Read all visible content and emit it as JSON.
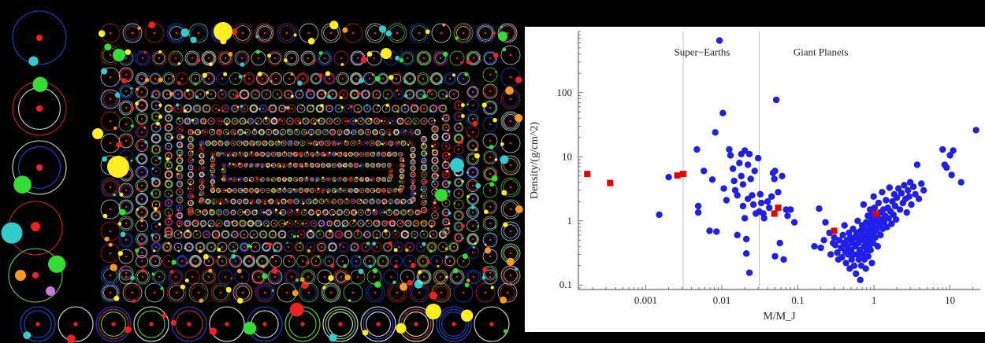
{
  "orbit_panel": {
    "description_colors": {
      "background": "#000000",
      "orbit_white": "#d9d9d9",
      "orbit_green": "#66cc44",
      "orbit_red": "#cc2222",
      "orbit_blue": "#2244cc",
      "planet_yellow": "#ffee22",
      "planet_green": "#33dd33",
      "planet_red": "#ee2222",
      "planet_cyan": "#33cccc",
      "planet_orange": "#ff9922",
      "planet_violet": "#cc77dd"
    }
  },
  "chart_data": {
    "type": "scatter",
    "title": "",
    "xlabel": "M/M_J",
    "ylabel": "Density/(g/cm^2)",
    "xscale": "log",
    "yscale": "log",
    "xlim": [
      0.00013,
      25
    ],
    "ylim": [
      0.085,
      900
    ],
    "x_ticks": [
      {
        "value": 0.001,
        "label": "0.001"
      },
      {
        "value": 0.01,
        "label": "0.01"
      },
      {
        "value": 0.1,
        "label": "0.1"
      },
      {
        "value": 1,
        "label": "1"
      },
      {
        "value": 10,
        "label": "10"
      }
    ],
    "y_ticks": [
      {
        "value": 0.1,
        "label": "0.1"
      },
      {
        "value": 1,
        "label": "1"
      },
      {
        "value": 10,
        "label": "10"
      },
      {
        "value": 100,
        "label": "100"
      }
    ],
    "vertical_lines": [
      0.0031,
      0.031
    ],
    "region_labels": [
      {
        "text": "Super−Earths",
        "x": 0.0055,
        "y": 380
      },
      {
        "text": "Giant Planets",
        "x": 0.2,
        "y": 380
      }
    ],
    "grid": false,
    "legend": "none",
    "series": [
      {
        "color": "#1f1fe6",
        "marker": "circle",
        "points": [
          [
            0.0015,
            1.25
          ],
          [
            0.002,
            4.8
          ],
          [
            0.0047,
            13
          ],
          [
            0.0049,
            1.7
          ],
          [
            0.0049,
            1.35
          ],
          [
            0.0058,
            6
          ],
          [
            0.0069,
            0.7
          ],
          [
            0.0075,
            4.4
          ],
          [
            0.0082,
            24
          ],
          [
            0.0085,
            0.68
          ],
          [
            0.0093,
            650
          ],
          [
            0.0103,
            48
          ],
          [
            0.0106,
            3.2
          ],
          [
            0.0115,
            2.1
          ],
          [
            0.0125,
            13
          ],
          [
            0.013,
            10.5
          ],
          [
            0.014,
            6.5
          ],
          [
            0.0145,
            4.2
          ],
          [
            0.015,
            3
          ],
          [
            0.016,
            2.5
          ],
          [
            0.016,
            0.6
          ],
          [
            0.017,
            8
          ],
          [
            0.018,
            11
          ],
          [
            0.018,
            5
          ],
          [
            0.019,
            3.7
          ],
          [
            0.019,
            1.7
          ],
          [
            0.02,
            12.5
          ],
          [
            0.02,
            1.1
          ],
          [
            0.021,
            0.31
          ],
          [
            0.021,
            0.52
          ],
          [
            0.022,
            7.5
          ],
          [
            0.022,
            2.2
          ],
          [
            0.023,
            11
          ],
          [
            0.023,
            0.155
          ],
          [
            0.024,
            4.5
          ],
          [
            0.025,
            2.5
          ],
          [
            0.026,
            1.8
          ],
          [
            0.027,
            6
          ],
          [
            0.028,
            1.3
          ],
          [
            0.03,
            9.5
          ],
          [
            0.031,
            1.4
          ],
          [
            0.032,
            2.6
          ],
          [
            0.033,
            1.9
          ],
          [
            0.035,
            1.3
          ],
          [
            0.036,
            1.1
          ],
          [
            0.04,
            2
          ],
          [
            0.042,
            1.6
          ],
          [
            0.045,
            2.4
          ],
          [
            0.047,
            5.6
          ],
          [
            0.049,
            4.5
          ],
          [
            0.05,
            6
          ],
          [
            0.05,
            0.28
          ],
          [
            0.052,
            77
          ],
          [
            0.055,
            2.8
          ],
          [
            0.058,
            0.45
          ],
          [
            0.062,
            5
          ],
          [
            0.065,
            0.25
          ],
          [
            0.07,
            1.5
          ],
          [
            0.073,
            1.2
          ],
          [
            0.08,
            1.5
          ],
          [
            0.09,
            0.95
          ],
          [
            0.165,
            0.4
          ],
          [
            0.19,
            1.55
          ],
          [
            0.2,
            0.38
          ],
          [
            0.22,
            0.5
          ],
          [
            0.23,
            0.95
          ],
          [
            0.26,
            0.65
          ],
          [
            0.27,
            0.3
          ],
          [
            0.29,
            0.45
          ],
          [
            0.3,
            0.55
          ],
          [
            0.31,
            0.42
          ],
          [
            0.33,
            0.32
          ],
          [
            0.34,
            0.25
          ],
          [
            0.35,
            0.5
          ],
          [
            0.37,
            0.38
          ],
          [
            0.38,
            0.27
          ],
          [
            0.39,
            0.6
          ],
          [
            0.4,
            0.45
          ],
          [
            0.41,
            0.85
          ],
          [
            0.42,
            0.33
          ],
          [
            0.43,
            0.22
          ],
          [
            0.44,
            0.5
          ],
          [
            0.45,
            0.4
          ],
          [
            0.46,
            0.3
          ],
          [
            0.47,
            0.65
          ],
          [
            0.48,
            0.18
          ],
          [
            0.49,
            0.55
          ],
          [
            0.5,
            0.35
          ],
          [
            0.51,
            0.25
          ],
          [
            0.52,
            0.45
          ],
          [
            0.53,
            0.75
          ],
          [
            0.54,
            0.3
          ],
          [
            0.55,
            0.2
          ],
          [
            0.56,
            0.55
          ],
          [
            0.57,
            0.4
          ],
          [
            0.58,
            0.15
          ],
          [
            0.59,
            0.65
          ],
          [
            0.6,
            0.3
          ],
          [
            0.61,
            1.0
          ],
          [
            0.62,
            0.45
          ],
          [
            0.63,
            0.25
          ],
          [
            0.64,
            0.55
          ],
          [
            0.65,
            0.35
          ],
          [
            0.66,
            0.12
          ],
          [
            0.67,
            0.7
          ],
          [
            0.68,
            0.2
          ],
          [
            0.69,
            0.5
          ],
          [
            0.7,
            0.85
          ],
          [
            0.71,
            0.3
          ],
          [
            0.72,
            0.6
          ],
          [
            0.73,
            1.8
          ],
          [
            0.74,
            0.4
          ],
          [
            0.75,
            0.25
          ],
          [
            0.76,
            0.75
          ],
          [
            0.77,
            0.5
          ],
          [
            0.78,
            0.18
          ],
          [
            0.79,
            0.95
          ],
          [
            0.8,
            0.35
          ],
          [
            0.81,
            0.6
          ],
          [
            0.82,
            0.45
          ],
          [
            0.83,
            1.2
          ],
          [
            0.84,
            0.28
          ],
          [
            0.85,
            0.7
          ],
          [
            0.86,
            0.9
          ],
          [
            0.87,
            0.4
          ],
          [
            0.88,
            0.55
          ],
          [
            0.89,
            1.5
          ],
          [
            0.9,
            0.35
          ],
          [
            0.91,
            0.75
          ],
          [
            0.92,
            1.1
          ],
          [
            0.93,
            0.5
          ],
          [
            0.94,
            0.22
          ],
          [
            0.95,
            0.9
          ],
          [
            0.96,
            0.65
          ],
          [
            0.97,
            1.35
          ],
          [
            0.98,
            0.45
          ],
          [
            0.99,
            2.4
          ],
          [
            1.0,
            0.8
          ],
          [
            1.02,
            1.6
          ],
          [
            1.04,
            0.55
          ],
          [
            1.06,
            1.0
          ],
          [
            1.08,
            0.7
          ],
          [
            1.1,
            1.2
          ],
          [
            1.12,
            0.4
          ],
          [
            1.15,
            1.9
          ],
          [
            1.18,
            0.85
          ],
          [
            1.2,
            1.35
          ],
          [
            1.22,
            0.6
          ],
          [
            1.25,
            1.05
          ],
          [
            1.28,
            2.8
          ],
          [
            1.3,
            0.75
          ],
          [
            1.33,
            1.5
          ],
          [
            1.36,
            0.95
          ],
          [
            1.4,
            1.2
          ],
          [
            1.44,
            2.1
          ],
          [
            1.48,
            0.8
          ],
          [
            1.52,
            1.6
          ],
          [
            1.56,
            1.1
          ],
          [
            1.6,
            3.3
          ],
          [
            1.65,
            1.4
          ],
          [
            1.7,
            0.9
          ],
          [
            1.75,
            2.0
          ],
          [
            1.8,
            1.25
          ],
          [
            1.85,
            2.6
          ],
          [
            1.9,
            1.7
          ],
          [
            1.95,
            1.05
          ],
          [
            2.0,
            2.3
          ],
          [
            2.1,
            3.2
          ],
          [
            2.2,
            1.5
          ],
          [
            2.3,
            2.7
          ],
          [
            2.4,
            1.9
          ],
          [
            2.5,
            3.6
          ],
          [
            2.6,
            2.2
          ],
          [
            2.7,
            1.35
          ],
          [
            2.8,
            3.0
          ],
          [
            2.9,
            2.4
          ],
          [
            3.0,
            4.0
          ],
          [
            3.1,
            1.8
          ],
          [
            3.3,
            3.4
          ],
          [
            3.5,
            2.6
          ],
          [
            3.7,
            7.5
          ],
          [
            3.9,
            2.2
          ],
          [
            4.2,
            3.8
          ],
          [
            4.5,
            3.0
          ],
          [
            8,
            13
          ],
          [
            8.5,
            7.5
          ],
          [
            9,
            6.8
          ],
          [
            10,
            10.5
          ],
          [
            10.5,
            5.2
          ],
          [
            11,
            12.5
          ],
          [
            14,
            4
          ],
          [
            22,
            26
          ]
        ]
      },
      {
        "color": "#e60000",
        "marker": "square",
        "points": [
          [
            0.00017,
            5.4
          ],
          [
            0.00034,
            3.9
          ],
          [
            0.0026,
            5.1
          ],
          [
            0.0031,
            5.4
          ],
          [
            0.049,
            1.3
          ],
          [
            0.055,
            1.6
          ],
          [
            0.3,
            0.7
          ],
          [
            1.05,
            1.3
          ]
        ]
      }
    ]
  }
}
